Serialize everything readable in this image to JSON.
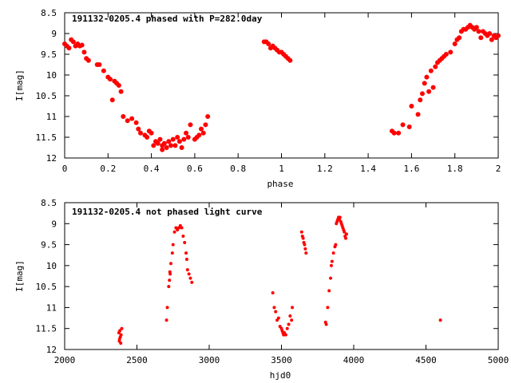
{
  "chart_data": [
    {
      "type": "scatter",
      "title": "191132-0205.4 phased with P=282.0day",
      "xlabel": "phase",
      "ylabel": "I[mag]",
      "xlim": [
        0,
        2
      ],
      "ylim": [
        8.5,
        12
      ],
      "y_inverted": true,
      "grid": false,
      "marker_color": "#ff0000",
      "xticks": [
        0,
        0.2,
        0.4,
        0.6,
        0.8,
        1,
        1.2,
        1.4,
        1.6,
        1.8,
        2
      ],
      "xtick_labels": [
        "0",
        "0.2",
        "0.4",
        "0.6",
        "0.8",
        "1",
        "1.2",
        "1.4",
        "1.6",
        "1.8",
        "2"
      ],
      "yticks": [
        8.5,
        9,
        9.5,
        10,
        10.5,
        11,
        11.5,
        12
      ],
      "ytick_labels": [
        "8.5",
        "9",
        "9.5",
        "10",
        "10.5",
        "11",
        "11.5",
        "12"
      ],
      "series": [
        {
          "x": [
            0.0,
            0.01,
            0.02,
            0.03,
            0.04,
            0.05,
            0.06,
            0.07,
            0.08,
            0.09,
            0.1,
            0.11,
            0.15,
            0.16,
            0.18,
            0.2,
            0.21,
            0.22,
            0.23,
            0.24,
            0.25,
            0.26,
            0.27,
            0.29,
            0.31,
            0.33,
            0.34,
            0.35,
            0.37,
            0.38,
            0.39,
            0.4,
            0.41,
            0.42,
            0.43,
            0.44,
            0.45,
            0.45,
            0.46,
            0.47,
            0.48,
            0.49,
            0.5,
            0.51,
            0.52,
            0.53,
            0.54,
            0.55,
            0.56,
            0.57,
            0.58,
            0.6,
            0.61,
            0.62,
            0.63,
            0.64,
            0.65,
            0.66,
            0.92,
            0.93,
            0.94,
            0.95,
            0.96,
            0.97,
            0.98,
            0.99,
            1.0,
            1.01,
            1.02,
            1.03,
            1.04,
            1.51,
            1.52,
            1.54,
            1.56,
            1.59,
            1.6,
            1.63,
            1.64,
            1.65,
            1.66,
            1.67,
            1.68,
            1.69,
            1.7,
            1.71,
            1.72,
            1.73,
            1.74,
            1.75,
            1.76,
            1.78,
            1.8,
            1.81,
            1.82,
            1.83,
            1.84,
            1.85,
            1.86,
            1.87,
            1.88,
            1.89,
            1.9,
            1.91,
            1.92,
            1.93,
            1.94,
            1.95,
            1.96,
            1.97,
            1.98,
            1.99,
            2.0
          ],
          "y": [
            9.25,
            9.3,
            9.35,
            9.15,
            9.2,
            9.3,
            9.25,
            9.3,
            9.28,
            9.45,
            9.6,
            9.65,
            9.75,
            9.75,
            9.9,
            10.05,
            10.1,
            10.6,
            10.15,
            10.2,
            10.25,
            10.4,
            11.0,
            11.1,
            11.05,
            11.15,
            11.3,
            11.4,
            11.45,
            11.5,
            11.35,
            11.4,
            11.7,
            11.6,
            11.65,
            11.55,
            11.7,
            11.8,
            11.65,
            11.75,
            11.6,
            11.7,
            11.55,
            11.7,
            11.5,
            11.6,
            11.75,
            11.55,
            11.4,
            11.5,
            11.2,
            11.55,
            11.5,
            11.45,
            11.3,
            11.4,
            11.2,
            11.0,
            9.2,
            9.2,
            9.25,
            9.35,
            9.3,
            9.35,
            9.4,
            9.45,
            9.45,
            9.5,
            9.55,
            9.6,
            9.65,
            11.35,
            11.4,
            11.4,
            11.2,
            11.25,
            10.75,
            10.95,
            10.6,
            10.45,
            10.2,
            10.05,
            10.4,
            9.9,
            10.3,
            9.8,
            9.7,
            9.65,
            9.6,
            9.55,
            9.5,
            9.45,
            9.25,
            9.15,
            9.1,
            8.95,
            8.9,
            8.9,
            8.85,
            8.8,
            8.85,
            8.9,
            8.85,
            8.95,
            9.1,
            8.95,
            9.0,
            9.05,
            9.0,
            9.15,
            9.05,
            9.1,
            9.05
          ]
        }
      ]
    },
    {
      "type": "scatter",
      "title": "191132-0205.4 not phased light curve",
      "xlabel": "hjd0",
      "ylabel": "I[mag]",
      "xlim": [
        2000,
        5000
      ],
      "ylim": [
        8.5,
        12
      ],
      "y_inverted": true,
      "grid": false,
      "marker_color": "#ff0000",
      "xticks": [
        2000,
        2500,
        3000,
        3500,
        4000,
        4500,
        5000
      ],
      "xtick_labels": [
        "2000",
        "2500",
        "3000",
        "3500",
        "4000",
        "4500",
        "5000"
      ],
      "yticks": [
        8.5,
        9,
        9.5,
        10,
        10.5,
        11,
        11.5,
        12
      ],
      "ytick_labels": [
        "8.5",
        "9",
        "9.5",
        "10",
        "10.5",
        "11",
        "11.5",
        "12"
      ],
      "series": [
        {
          "x": [
            2375,
            2380,
            2385,
            2378,
            2390,
            2382,
            2395,
            2388,
            2705,
            2710,
            2720,
            2725,
            2728,
            2730,
            2735,
            2745,
            2750,
            2760,
            2770,
            2780,
            2790,
            2800,
            2810,
            2820,
            2830,
            2840,
            2845,
            2850,
            2860,
            2870,
            2880,
            3440,
            3450,
            3460,
            3470,
            3480,
            3490,
            3500,
            3505,
            3510,
            3515,
            3520,
            3530,
            3540,
            3550,
            3560,
            3570,
            3575,
            3640,
            3645,
            3650,
            3655,
            3660,
            3665,
            3670,
            3805,
            3810,
            3820,
            3830,
            3840,
            3845,
            3850,
            3860,
            3870,
            3875,
            3880,
            3885,
            3890,
            3895,
            3900,
            3905,
            3910,
            3915,
            3920,
            3925,
            3930,
            3935,
            3940,
            3945,
            3950,
            4600
          ],
          "y": [
            11.6,
            11.75,
            11.7,
            11.8,
            11.65,
            11.55,
            11.5,
            11.85,
            11.3,
            11.0,
            10.5,
            10.35,
            10.15,
            10.2,
            9.95,
            9.7,
            9.5,
            9.2,
            9.1,
            9.15,
            9.1,
            9.05,
            9.1,
            9.3,
            9.45,
            9.7,
            9.85,
            10.1,
            10.2,
            10.3,
            10.4,
            10.65,
            11.0,
            11.1,
            11.3,
            11.25,
            11.45,
            11.5,
            11.55,
            11.6,
            11.65,
            11.6,
            11.65,
            11.5,
            11.4,
            11.2,
            11.3,
            11.0,
            9.2,
            9.3,
            9.35,
            9.45,
            9.5,
            9.6,
            9.7,
            11.35,
            11.4,
            11.0,
            10.6,
            10.3,
            10.0,
            9.9,
            9.7,
            9.55,
            9.5,
            9.0,
            8.95,
            8.9,
            8.85,
            8.9,
            8.85,
            8.95,
            9.0,
            9.05,
            9.1,
            9.15,
            9.2,
            9.3,
            9.35,
            9.25,
            11.3
          ]
        }
      ]
    }
  ]
}
